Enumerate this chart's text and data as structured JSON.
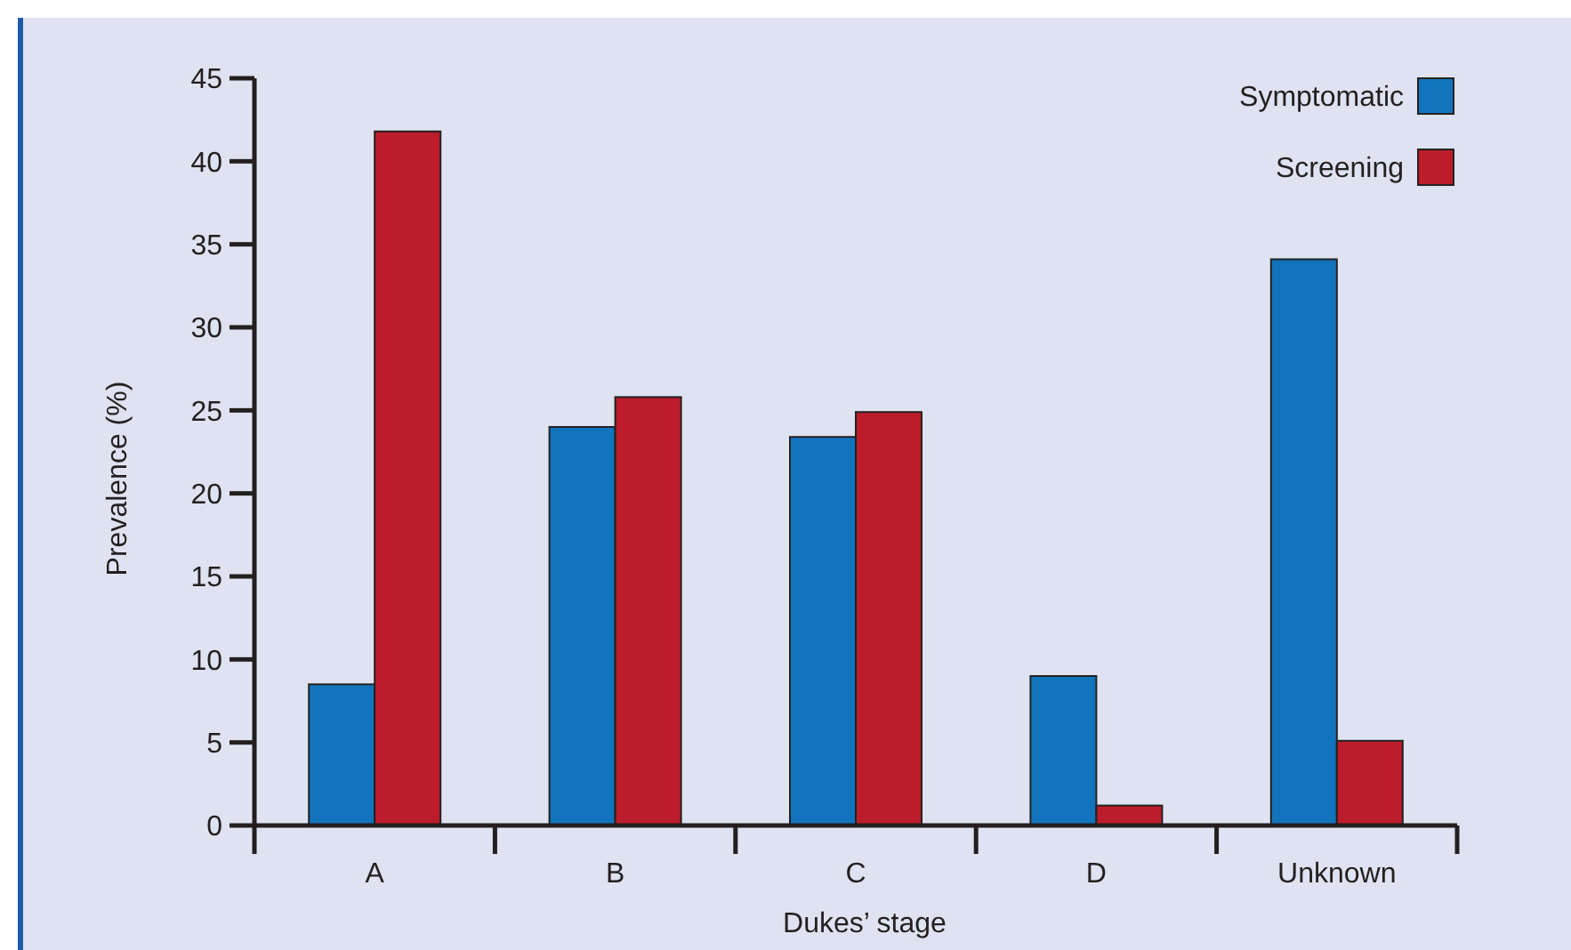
{
  "chart_data": {
    "type": "bar",
    "xlabel": "Dukes’ stage",
    "ylabel": "Prevalence (%)",
    "categories": [
      "A",
      "B",
      "C",
      "D",
      "Unknown"
    ],
    "series": [
      {
        "name": "Symptomatic",
        "color": "#1274bc",
        "values": [
          8.5,
          24.0,
          23.4,
          9.0,
          34.1
        ]
      },
      {
        "name": "Screening",
        "color": "#bd1c2b",
        "values": [
          41.8,
          25.8,
          24.9,
          1.2,
          5.1
        ]
      }
    ],
    "ylim": [
      0,
      45
    ],
    "yticks": [
      0,
      5,
      10,
      15,
      20,
      25,
      30,
      35,
      40,
      45
    ],
    "grid": false,
    "legend": "top right"
  }
}
